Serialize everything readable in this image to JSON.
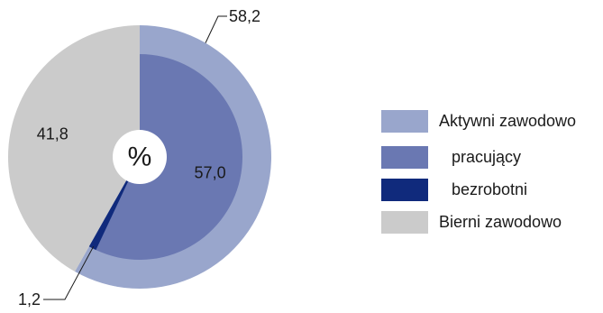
{
  "chart_data": {
    "type": "pie",
    "center_label": "%",
    "outer_ring": [
      {
        "name": "Aktywni zawodowo",
        "value": 58.2,
        "label": "58,2",
        "color": "#99a6cc"
      },
      {
        "name": "Bierni zawodowo",
        "value": 41.8,
        "label": "41,8",
        "color": "#cbcbcb"
      }
    ],
    "inner_ring": [
      {
        "name": "pracujący",
        "value": 57.0,
        "label": "57,0",
        "color": "#6a78b2"
      },
      {
        "name": "bezrobotni",
        "value": 1.2,
        "label": "1,2",
        "color": "#102a7c"
      }
    ],
    "legend": [
      {
        "label": "Aktywni zawodowo",
        "color": "#99a6cc",
        "indented": false
      },
      {
        "label": "pracujący",
        "color": "#6a78b2",
        "indented": true
      },
      {
        "label": "bezrobotni",
        "color": "#102a7c",
        "indented": true
      },
      {
        "label": "Bierni zawodowo",
        "color": "#cbcbcb",
        "indented": false
      }
    ]
  }
}
